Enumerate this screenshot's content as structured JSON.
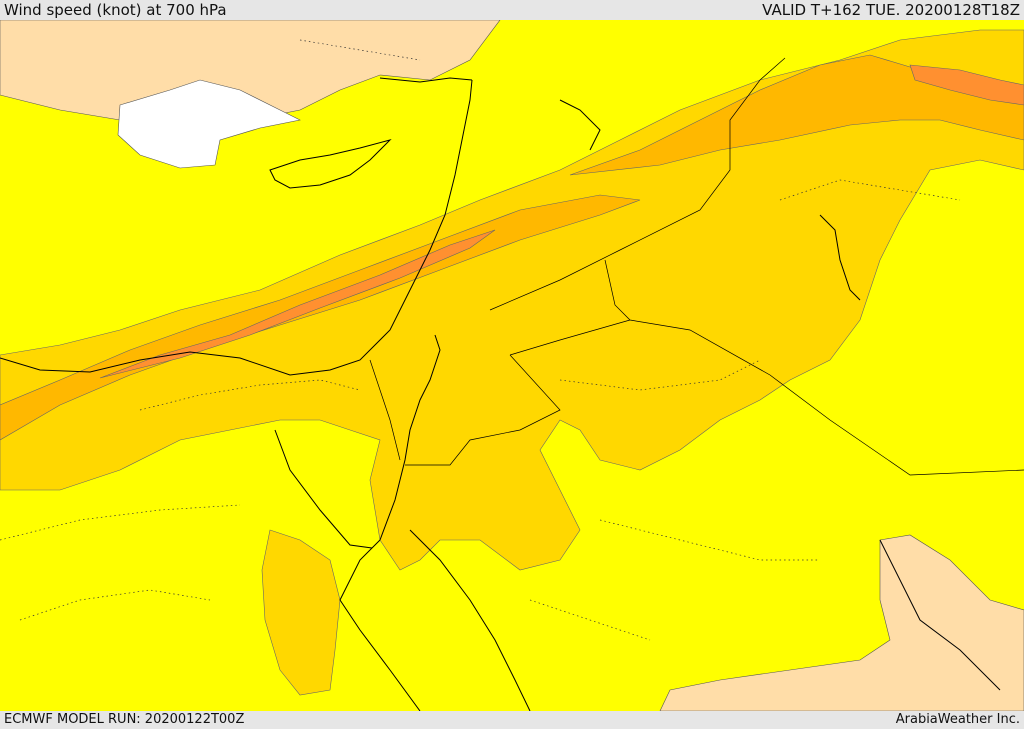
{
  "header": {
    "title": "Wind speed (knot) at 700 hPa",
    "valid": "VALID T+162 TUE. 20200128T18Z"
  },
  "footer": {
    "model_run": "ECMWF MODEL RUN: 20200122T00Z",
    "credit": "ArabiaWeather Inc."
  },
  "colors": {
    "background_low": "#ffff00",
    "band_1": "#ffd800",
    "band_2": "#ffb800",
    "band_3": "#ff9030",
    "calm": "#ffdda8",
    "missing": "#ffffff"
  }
}
